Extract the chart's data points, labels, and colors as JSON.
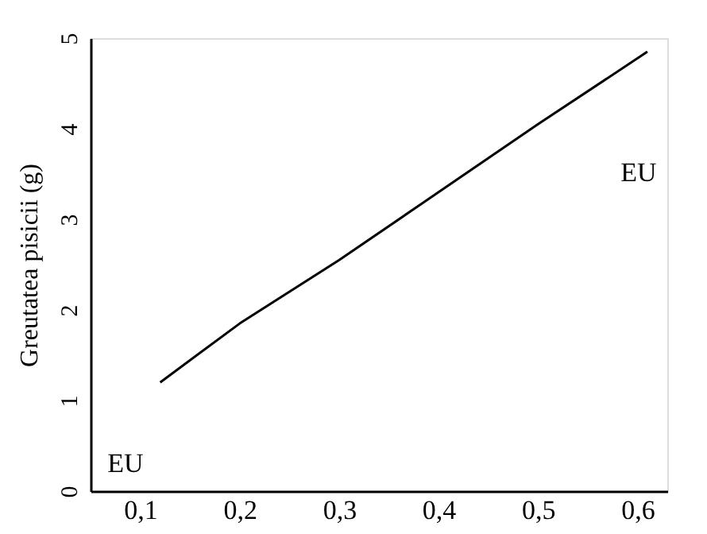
{
  "chart_data": {
    "type": "line",
    "ylabel": "Greutatea pisicii (g)",
    "x": [
      0.12,
      0.2,
      0.3,
      0.4,
      0.5,
      0.61
    ],
    "series": [
      {
        "color": "#000000",
        "values": [
          1.2,
          1.85,
          2.55,
          3.3,
          4.05,
          4.85
        ]
      }
    ],
    "xlim": [
      0.05,
      0.63
    ],
    "xticks": [
      {
        "value": 0.1,
        "label": "0,1"
      },
      {
        "value": 0.2,
        "label": "0,2"
      },
      {
        "value": 0.3,
        "label": "0,3"
      },
      {
        "value": 0.4,
        "label": "0,4"
      },
      {
        "value": 0.5,
        "label": "0,5"
      },
      {
        "value": 0.6,
        "label": "0,6"
      }
    ],
    "ylim": [
      0,
      5
    ],
    "yticks": [
      0,
      1,
      2,
      3,
      4,
      5
    ],
    "annotations": [
      "EU",
      "EU"
    ],
    "grid": false,
    "marker": "none",
    "line_style": "solid"
  }
}
